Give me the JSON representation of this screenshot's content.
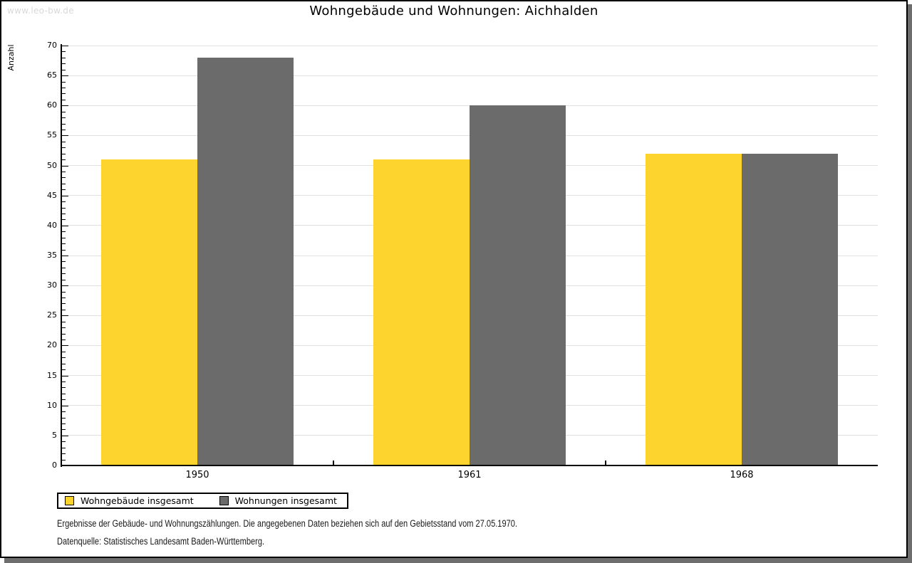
{
  "watermark": "www.leo-bw.de",
  "title": "Wohngebäude und Wohnungen: Aichhalden",
  "footnotes": {
    "line1": "Ergebnisse der Gebäude- und Wohnungszählungen. Die angegebenen Daten beziehen sich auf den Gebietsstand vom 27.05.1970.",
    "line2": "Datenquelle: Statistisches Landesamt Baden-Württemberg."
  },
  "colors": {
    "series_yellow": "#fcd42d",
    "series_gray": "#6b6b6b",
    "gridline": "#e1e1e1",
    "axis": "#000000",
    "watermark": "#d9d9d9",
    "frame_shadow": "#6e6e6e"
  },
  "chart_data": {
    "type": "bar",
    "title": "Wohngebäude und Wohnungen: Aichhalden",
    "xlabel": "",
    "ylabel": "Anzahl",
    "categories": [
      "1950",
      "1961",
      "1968"
    ],
    "series": [
      {
        "name": "Wohngebäude insgesamt",
        "color": "#fcd42d",
        "values": [
          51,
          51,
          52
        ]
      },
      {
        "name": "Wohnungen insgesamt",
        "color": "#6b6b6b",
        "values": [
          68,
          60,
          52
        ]
      }
    ],
    "ylim": [
      0,
      70
    ],
    "ytick_major_step": 5,
    "ytick_minor_step": 1,
    "grid": true,
    "legend_position": "bottom-left"
  }
}
